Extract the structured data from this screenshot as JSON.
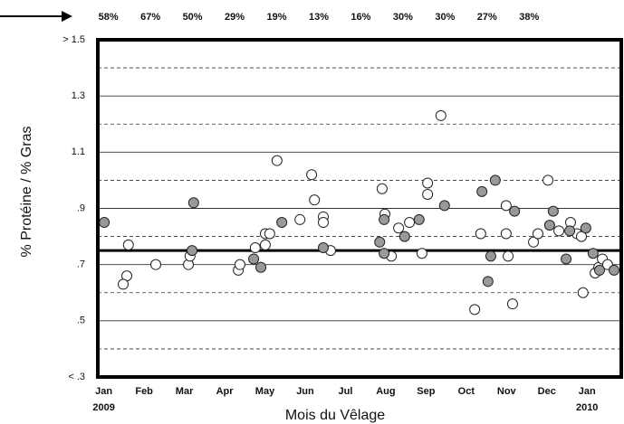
{
  "chart_data": {
    "type": "scatter",
    "x_label": "Mois du Vêlage",
    "y_label": "% Protéine / % Gras",
    "top_labels": [
      "58%",
      "67%",
      "50%",
      "29%",
      "19%",
      "13%",
      "16%",
      "30%",
      "30%",
      "27%",
      "38%"
    ],
    "xlim": [
      -0.15,
      12.85
    ],
    "xticks": [
      {
        "value": 0,
        "label": "Jan"
      },
      {
        "value": 1,
        "label": "Feb"
      },
      {
        "value": 2,
        "label": "Mar"
      },
      {
        "value": 3,
        "label": "Apr"
      },
      {
        "value": 4,
        "label": "May"
      },
      {
        "value": 5,
        "label": "Jun"
      },
      {
        "value": 6,
        "label": "Jul"
      },
      {
        "value": 7,
        "label": "Aug"
      },
      {
        "value": 8,
        "label": "Sep"
      },
      {
        "value": 9,
        "label": "Oct"
      },
      {
        "value": 10,
        "label": "Nov"
      },
      {
        "value": 11,
        "label": "Dec"
      },
      {
        "value": 12,
        "label": "Jan"
      }
    ],
    "year_ticks": [
      {
        "value": 0,
        "label": "2009"
      },
      {
        "value": 12,
        "label": "2010"
      }
    ],
    "ylim": [
      0.3,
      1.5
    ],
    "yticks": [
      {
        "value": 0.3,
        "label": "< .3"
      },
      {
        "value": 0.5,
        "label": ".5"
      },
      {
        "value": 0.7,
        "label": ".7"
      },
      {
        "value": 0.9,
        "label": ".9"
      },
      1.1,
      1.3,
      {
        "value": 1.5,
        "label": "> 1.5"
      }
    ],
    "minor_gridlines": [
      0.4,
      0.6,
      0.8,
      1.0,
      1.2,
      1.4
    ],
    "reference_line": 0.75,
    "series": [
      {
        "color": "#ffffff",
        "x": [
          0.61,
          0.57,
          0.48,
          1.29,
          2.1,
          2.14,
          3.34,
          3.38,
          3.76,
          4.01,
          4.01,
          4.12,
          4.3,
          4.87,
          5.16,
          5.23,
          5.45,
          5.45,
          5.63,
          6.91,
          6.98,
          7.14,
          7.32,
          7.59,
          7.9,
          8.04,
          8.04,
          8.37,
          9.21,
          9.36,
          9.99,
          9.99,
          10.04,
          10.15,
          10.67,
          10.78,
          11.03,
          11.3,
          11.59,
          11.75,
          11.86,
          11.9,
          12.2,
          12.29,
          12.38,
          12.51
        ],
        "values": [
          0.77,
          0.66,
          0.63,
          0.7,
          0.7,
          0.73,
          0.68,
          0.7,
          0.76,
          0.77,
          0.81,
          0.81,
          1.07,
          0.86,
          1.02,
          0.93,
          0.87,
          0.85,
          0.75,
          0.97,
          0.88,
          0.73,
          0.83,
          0.85,
          0.74,
          0.99,
          0.95,
          1.23,
          0.54,
          0.81,
          0.91,
          0.81,
          0.73,
          0.56,
          0.78,
          0.81,
          1.0,
          0.82,
          0.85,
          0.81,
          0.8,
          0.6,
          0.67,
          0.69,
          0.72,
          0.7
        ]
      },
      {
        "color": "#999999",
        "x": [
          0.01,
          2.23,
          2.19,
          3.72,
          3.9,
          4.42,
          5.45,
          6.85,
          6.96,
          6.96,
          7.47,
          7.83,
          8.46,
          9.39,
          9.54,
          9.61,
          9.72,
          10.2,
          11.07,
          11.16,
          11.48,
          11.57,
          11.97,
          12.15,
          12.31,
          12.67
        ],
        "values": [
          0.85,
          0.92,
          0.75,
          0.72,
          0.69,
          0.85,
          0.76,
          0.78,
          0.86,
          0.74,
          0.8,
          0.86,
          0.91,
          0.96,
          0.64,
          0.73,
          1.0,
          0.89,
          0.84,
          0.89,
          0.72,
          0.82,
          0.83,
          0.74,
          0.68,
          0.68
        ]
      }
    ]
  }
}
